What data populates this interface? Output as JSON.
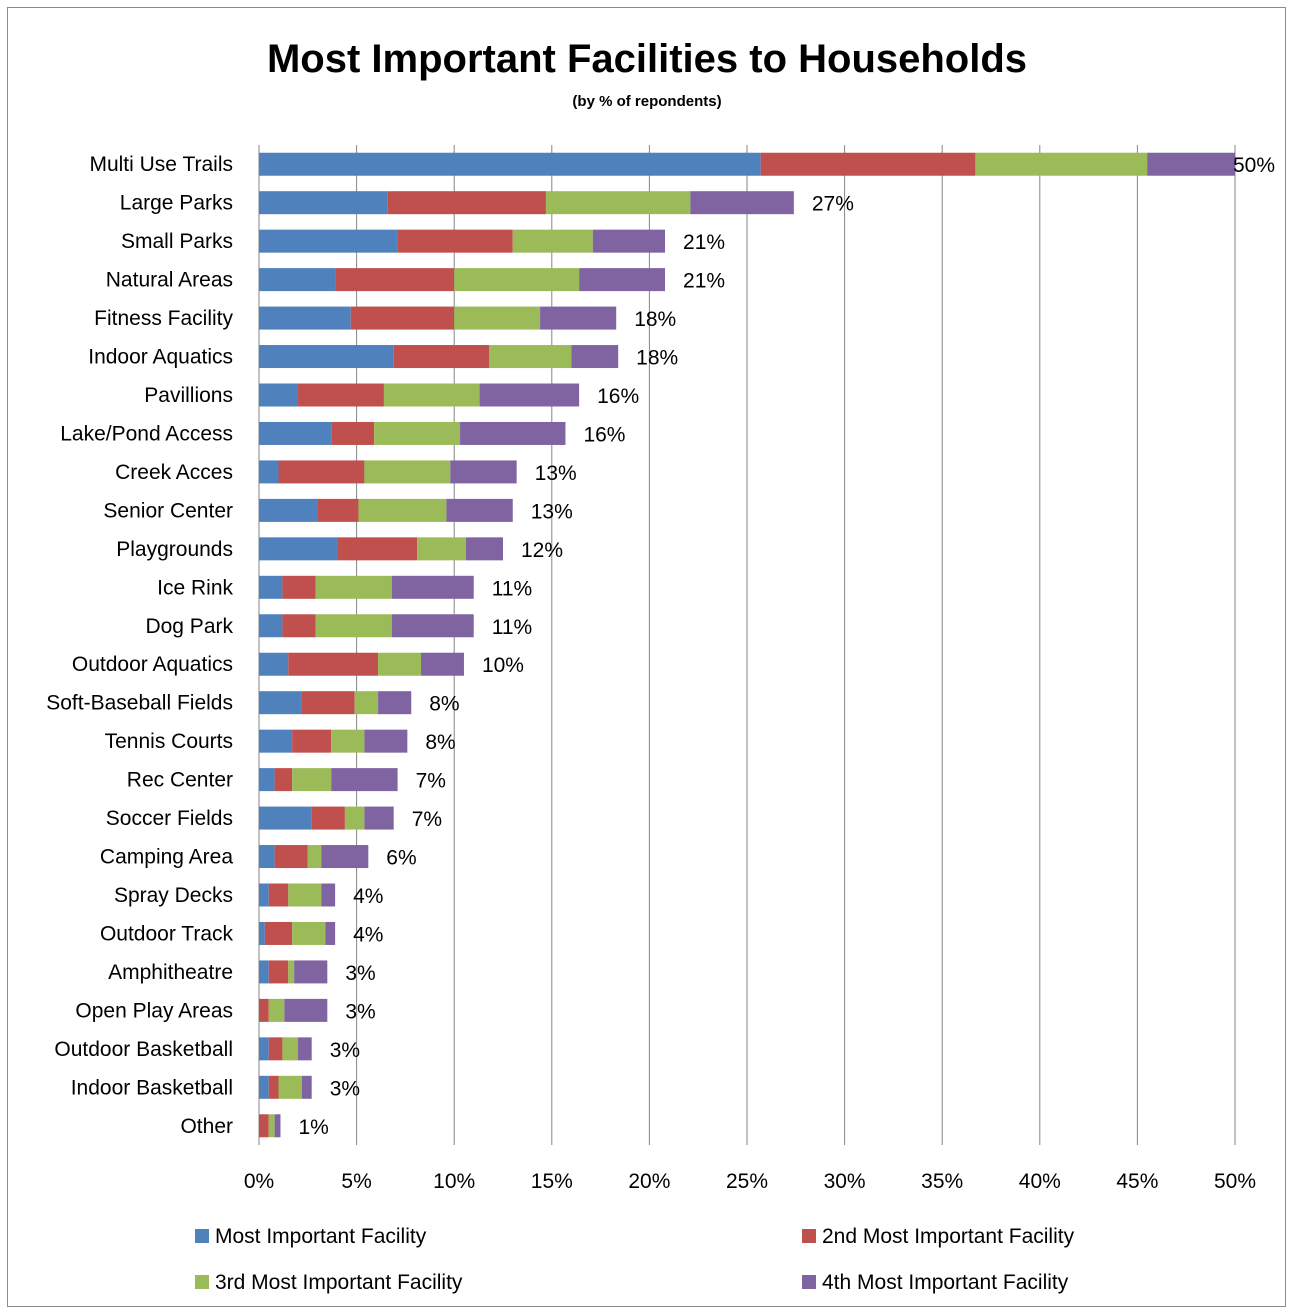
{
  "chart_data": {
    "type": "bar",
    "orientation": "horizontal",
    "stacked": true,
    "title": "Most Important Facilities to Households",
    "subtitle": "(by % of repondents)",
    "categories": [
      "Multi Use Trails",
      "Large Parks",
      "Small Parks",
      "Natural Areas",
      "Fitness Facility",
      "Indoor Aquatics",
      "Pavillions",
      "Lake/Pond Access",
      "Creek Acces",
      "Senior Center",
      "Playgrounds",
      "Ice Rink",
      "Dog Park",
      "Outdoor Aquatics",
      "Soft-Baseball Fields",
      "Tennis Courts",
      "Rec Center",
      "Soccer Fields",
      "Camping Area",
      "Spray Decks",
      "Outdoor Track",
      "Amphitheatre",
      "Open Play Areas",
      "Outdoor Basketball",
      "Indoor Basketball",
      "Other"
    ],
    "series": [
      {
        "name": "Most Important Facility",
        "color": "#4F81BD",
        "values": [
          25.7,
          6.6,
          7.1,
          3.9,
          4.7,
          6.9,
          2.0,
          3.7,
          1.0,
          3.0,
          4.0,
          1.2,
          1.2,
          1.5,
          2.2,
          1.7,
          0.8,
          2.7,
          0.8,
          0.5,
          0.3,
          0.5,
          0,
          0.5,
          0.5,
          0
        ]
      },
      {
        "name": "2nd Most Important Facility",
        "color": "#C0504D",
        "values": [
          11.0,
          8.1,
          5.9,
          6.1,
          5.3,
          4.9,
          4.4,
          2.2,
          4.4,
          2.1,
          4.1,
          1.7,
          1.7,
          4.6,
          2.7,
          2.0,
          0.9,
          1.7,
          1.7,
          1.0,
          1.4,
          1.0,
          0.5,
          0.7,
          0.5,
          0.5
        ]
      },
      {
        "name": "3rd Most Important Facility",
        "color": "#9BBB59",
        "values": [
          8.8,
          7.4,
          4.1,
          6.4,
          4.4,
          4.2,
          4.9,
          4.4,
          4.4,
          4.5,
          2.5,
          3.9,
          3.9,
          2.2,
          1.2,
          1.7,
          2.0,
          1.0,
          0.7,
          1.7,
          1.7,
          0.3,
          0.8,
          0.8,
          1.2,
          0.3
        ]
      },
      {
        "name": "4th Most Important Facility",
        "color": "#8064A2",
        "values": [
          4.5,
          5.3,
          3.7,
          4.4,
          3.9,
          2.4,
          5.1,
          5.4,
          3.4,
          3.4,
          1.9,
          4.2,
          4.2,
          2.2,
          1.7,
          2.2,
          3.4,
          1.5,
          2.4,
          0.7,
          0.5,
          1.7,
          2.2,
          0.7,
          0.5,
          0.3
        ]
      }
    ],
    "data_labels": [
      "50%",
      "27%",
      "21%",
      "21%",
      "18%",
      "18%",
      "16%",
      "16%",
      "13%",
      "13%",
      "12%",
      "11%",
      "11%",
      "10%",
      "8%",
      "8%",
      "7%",
      "7%",
      "6%",
      "4%",
      "4%",
      "3%",
      "3%",
      "3%",
      "3%",
      "1%"
    ],
    "x_ticks": [
      "0%",
      "5%",
      "10%",
      "15%",
      "20%",
      "25%",
      "30%",
      "35%",
      "40%",
      "45%",
      "50%"
    ],
    "xlim": [
      0,
      50
    ],
    "grid": "vertical major gridlines",
    "legend_position": "bottom"
  }
}
